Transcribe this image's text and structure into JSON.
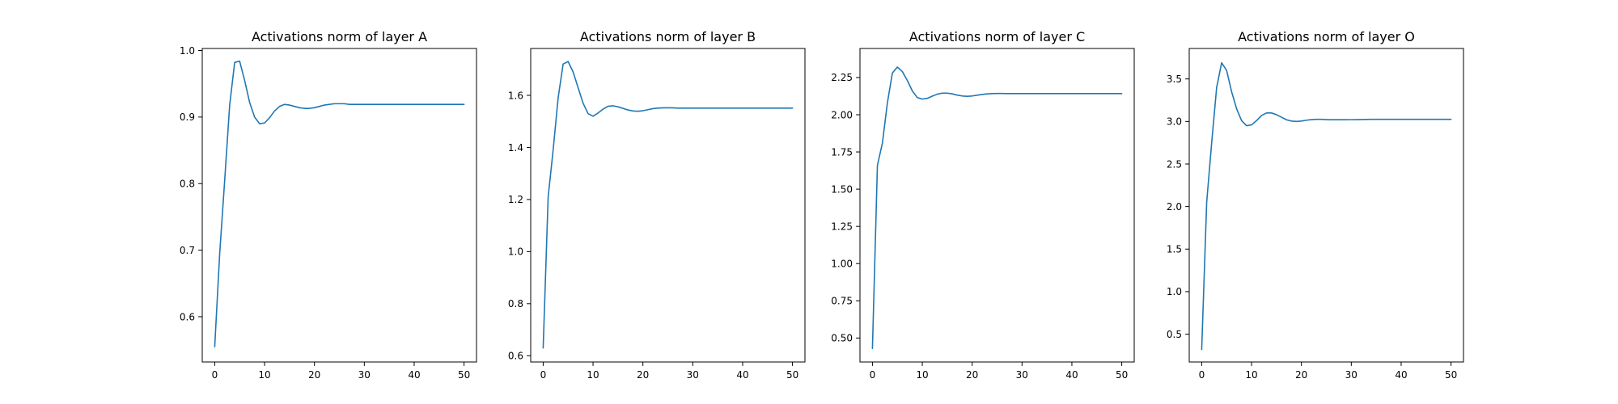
{
  "chart_data": [
    {
      "type": "line",
      "title": "Activations norm of layer A",
      "xlabel": "",
      "ylabel": "",
      "xlim": [
        -2.5,
        52.5
      ],
      "ylim": [
        0.532,
        1.003
      ],
      "xticks": [
        0,
        10,
        20,
        30,
        40,
        50
      ],
      "yticks": [
        0.6,
        0.7,
        0.8,
        0.9,
        1.0
      ],
      "ytick_labels": [
        "0.6",
        "0.7",
        "0.8",
        "0.9",
        "1.0"
      ],
      "grid": false,
      "series": [
        {
          "color": "#1f77b4",
          "x": [
            0,
            1,
            2,
            3,
            4,
            5,
            6,
            7,
            8,
            9,
            10,
            11,
            12,
            13,
            14,
            15,
            16,
            17,
            18,
            19,
            20,
            21,
            22,
            23,
            24,
            25,
            26,
            27,
            28,
            29,
            30,
            31,
            32,
            33,
            34,
            35,
            36,
            37,
            38,
            39,
            40,
            41,
            42,
            43,
            44,
            45,
            46,
            47,
            48,
            49,
            50
          ],
          "y": [
            0.555,
            0.695,
            0.805,
            0.918,
            0.982,
            0.984,
            0.955,
            0.922,
            0.9,
            0.89,
            0.891,
            0.899,
            0.909,
            0.916,
            0.919,
            0.918,
            0.916,
            0.914,
            0.913,
            0.913,
            0.914,
            0.916,
            0.918,
            0.919,
            0.92,
            0.92,
            0.92,
            0.919,
            0.919,
            0.919,
            0.919,
            0.919,
            0.919,
            0.919,
            0.919,
            0.919,
            0.919,
            0.919,
            0.919,
            0.919,
            0.919,
            0.919,
            0.919,
            0.919,
            0.919,
            0.919,
            0.919,
            0.919,
            0.919,
            0.919,
            0.919
          ]
        }
      ]
    },
    {
      "type": "line",
      "title": "Activations norm of layer B",
      "xlabel": "",
      "ylabel": "",
      "xlim": [
        -2.5,
        52.5
      ],
      "ylim": [
        0.576,
        1.78
      ],
      "xticks": [
        0,
        10,
        20,
        30,
        40,
        50
      ],
      "yticks": [
        0.6,
        0.8,
        1.0,
        1.2,
        1.4,
        1.6
      ],
      "ytick_labels": [
        "0.6",
        "0.8",
        "1.0",
        "1.2",
        "1.4",
        "1.6"
      ],
      "grid": false,
      "series": [
        {
          "color": "#1f77b4",
          "x": [
            0,
            1,
            2,
            3,
            4,
            5,
            6,
            7,
            8,
            9,
            10,
            11,
            12,
            13,
            14,
            15,
            16,
            17,
            18,
            19,
            20,
            21,
            22,
            23,
            24,
            25,
            26,
            27,
            28,
            29,
            30,
            31,
            32,
            33,
            34,
            35,
            36,
            37,
            38,
            39,
            40,
            41,
            42,
            43,
            44,
            45,
            46,
            47,
            48,
            49,
            50
          ],
          "y": [
            0.63,
            1.21,
            1.39,
            1.59,
            1.72,
            1.73,
            1.69,
            1.63,
            1.57,
            1.53,
            1.52,
            1.532,
            1.547,
            1.558,
            1.56,
            1.556,
            1.55,
            1.544,
            1.54,
            1.539,
            1.541,
            1.545,
            1.549,
            1.551,
            1.552,
            1.552,
            1.552,
            1.551,
            1.551,
            1.551,
            1.551,
            1.551,
            1.551,
            1.551,
            1.551,
            1.551,
            1.551,
            1.551,
            1.551,
            1.551,
            1.551,
            1.551,
            1.551,
            1.551,
            1.551,
            1.551,
            1.551,
            1.551,
            1.551,
            1.551,
            1.551
          ]
        }
      ]
    },
    {
      "type": "line",
      "title": "Activations norm of layer C",
      "xlabel": "",
      "ylabel": "",
      "xlim": [
        -2.5,
        52.5
      ],
      "ylim": [
        0.339,
        2.445
      ],
      "xticks": [
        0,
        10,
        20,
        30,
        40,
        50
      ],
      "yticks": [
        0.5,
        0.75,
        1.0,
        1.25,
        1.5,
        1.75,
        2.0,
        2.25
      ],
      "ytick_labels": [
        "0.50",
        "0.75",
        "1.00",
        "1.25",
        "1.50",
        "1.75",
        "2.00",
        "2.25"
      ],
      "grid": false,
      "series": [
        {
          "color": "#1f77b4",
          "x": [
            0,
            1,
            2,
            3,
            4,
            5,
            6,
            7,
            8,
            9,
            10,
            11,
            12,
            13,
            14,
            15,
            16,
            17,
            18,
            19,
            20,
            21,
            22,
            23,
            24,
            25,
            26,
            27,
            28,
            29,
            30,
            31,
            32,
            33,
            34,
            35,
            36,
            37,
            38,
            39,
            40,
            41,
            42,
            43,
            44,
            45,
            46,
            47,
            48,
            49,
            50
          ],
          "y": [
            0.43,
            1.66,
            1.81,
            2.08,
            2.28,
            2.32,
            2.29,
            2.23,
            2.16,
            2.115,
            2.105,
            2.11,
            2.125,
            2.138,
            2.145,
            2.145,
            2.14,
            2.132,
            2.126,
            2.124,
            2.126,
            2.131,
            2.136,
            2.14,
            2.142,
            2.143,
            2.143,
            2.142,
            2.142,
            2.142,
            2.142,
            2.142,
            2.142,
            2.142,
            2.142,
            2.142,
            2.142,
            2.142,
            2.142,
            2.142,
            2.142,
            2.142,
            2.142,
            2.142,
            2.142,
            2.142,
            2.142,
            2.142,
            2.142,
            2.142,
            2.142
          ]
        }
      ]
    },
    {
      "type": "line",
      "title": "Activations norm of layer O",
      "xlabel": "",
      "ylabel": "",
      "xlim": [
        -2.5,
        52.5
      ],
      "ylim": [
        0.173,
        3.858
      ],
      "xticks": [
        0,
        10,
        20,
        30,
        40,
        50
      ],
      "yticks": [
        0.5,
        1.0,
        1.5,
        2.0,
        2.5,
        3.0,
        3.5
      ],
      "ytick_labels": [
        "0.5",
        "1.0",
        "1.5",
        "2.0",
        "2.5",
        "3.0",
        "3.5"
      ],
      "grid": false,
      "series": [
        {
          "color": "#1f77b4",
          "x": [
            0,
            1,
            2,
            3,
            4,
            5,
            6,
            7,
            8,
            9,
            10,
            11,
            12,
            13,
            14,
            15,
            16,
            17,
            18,
            19,
            20,
            21,
            22,
            23,
            24,
            25,
            26,
            27,
            28,
            29,
            30,
            31,
            32,
            33,
            34,
            35,
            36,
            37,
            38,
            39,
            40,
            41,
            42,
            43,
            44,
            45,
            46,
            47,
            48,
            49,
            50
          ],
          "y": [
            0.32,
            2.05,
            2.75,
            3.4,
            3.69,
            3.6,
            3.35,
            3.15,
            3.01,
            2.95,
            2.96,
            3.01,
            3.07,
            3.1,
            3.1,
            3.08,
            3.05,
            3.02,
            3.005,
            3.0,
            3.005,
            3.015,
            3.022,
            3.025,
            3.025,
            3.022,
            3.02,
            3.02,
            3.02,
            3.02,
            3.021,
            3.022,
            3.023,
            3.024,
            3.025,
            3.025,
            3.025,
            3.025,
            3.025,
            3.025,
            3.025,
            3.025,
            3.025,
            3.025,
            3.025,
            3.025,
            3.025,
            3.025,
            3.025,
            3.025,
            3.025
          ]
        }
      ]
    }
  ]
}
